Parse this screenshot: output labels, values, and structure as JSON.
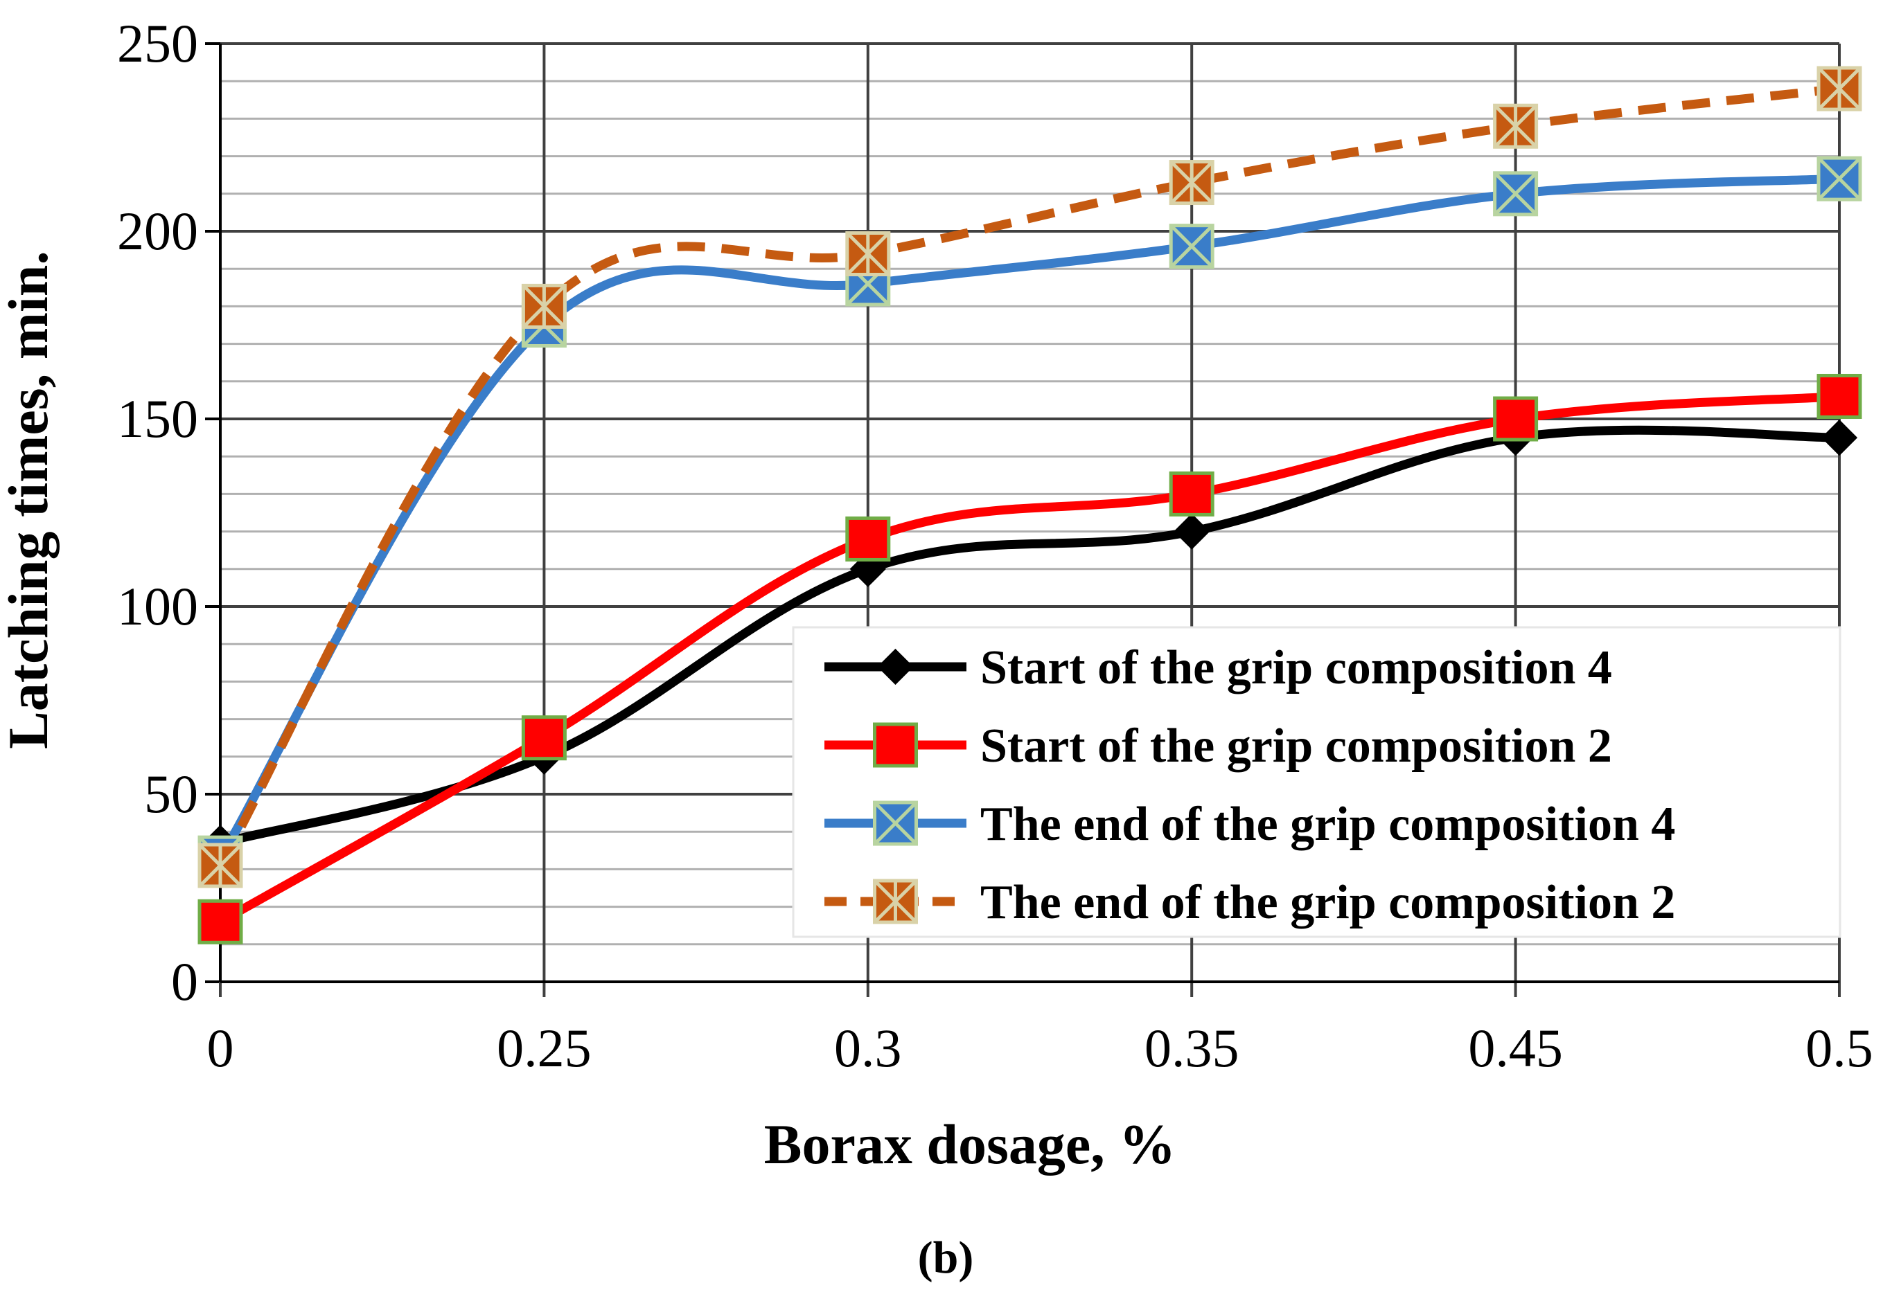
{
  "chart_data": {
    "type": "line",
    "title": "",
    "xlabel": "Borax dosage, %",
    "ylabel": "Latching times,  min.",
    "categories": [
      "0",
      "0.25",
      "0.3",
      "0.35",
      "0.45",
      "0.5"
    ],
    "ylim": [
      0,
      250
    ],
    "y_major_ticks": [
      "0",
      "50",
      "100",
      "150",
      "200",
      "250"
    ],
    "y_minor_step": 10,
    "grid": true,
    "legend_position": "bottom-right",
    "caption": "(b)",
    "series": [
      {
        "name": "Start of the grip composition 4",
        "values": [
          37,
          60,
          110,
          120,
          145,
          145
        ],
        "color": "#000000",
        "marker": "diamond",
        "marker_fill": "#000000",
        "marker_edge": "#000000",
        "dashed": false
      },
      {
        "name": "Start of the grip composition 2",
        "values": [
          16,
          65,
          118,
          130,
          150,
          156
        ],
        "color": "#ff0000",
        "marker": "square",
        "marker_fill": "#ff0000",
        "marker_edge": "#70ad47",
        "dashed": false
      },
      {
        "name": "The end of the grip composition 4",
        "values": [
          33,
          175,
          186,
          196,
          210,
          214
        ],
        "color": "#3a7dc9",
        "marker": "x-square",
        "marker_fill": "#3a7dc9",
        "marker_edge": "#b8d4a0",
        "dashed": false
      },
      {
        "name": "The end of the grip composition 2",
        "values": [
          31,
          180,
          194,
          213,
          228,
          238
        ],
        "color": "#c55a11",
        "marker": "star-square",
        "marker_fill": "#c55a11",
        "marker_edge": "#d9d2a8",
        "dashed": true
      }
    ]
  }
}
